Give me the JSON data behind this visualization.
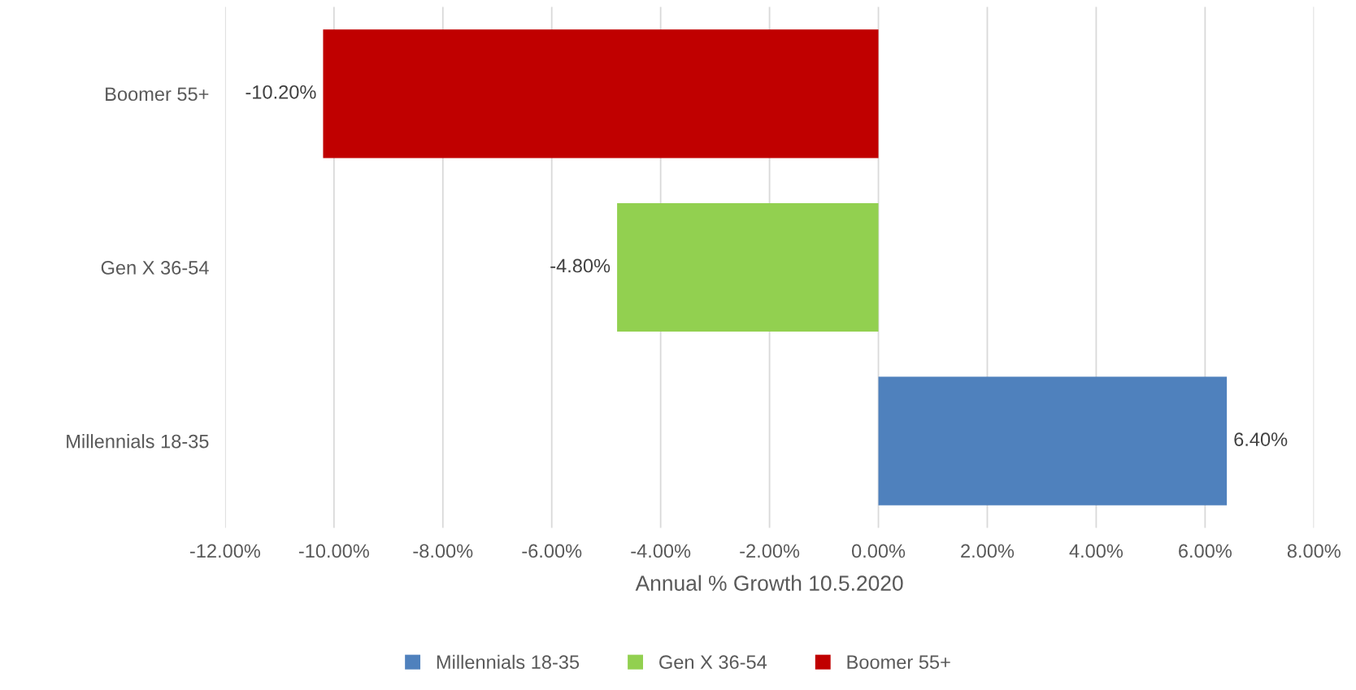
{
  "chart_data": {
    "type": "bar",
    "orientation": "horizontal",
    "categories": [
      "Boomer 55+",
      "Gen X 36-54",
      "Millennials 18-35"
    ],
    "series": [
      {
        "name": "Millennials 18-35",
        "color": "#4f81bd",
        "values": [
          null,
          null,
          6.4
        ],
        "value_labels": [
          null,
          null,
          "6.40%"
        ]
      },
      {
        "name": "Gen X 36-54",
        "color": "#92d050",
        "values": [
          null,
          -4.8,
          null
        ],
        "value_labels": [
          null,
          "-4.80%",
          null
        ]
      },
      {
        "name": "Boomer 55+",
        "color": "#c00000",
        "values": [
          -10.2,
          null,
          null
        ],
        "value_labels": [
          "-10.20%",
          null,
          null
        ]
      }
    ],
    "xlabel": "Annual % Growth 10.5.2020",
    "xlim": [
      -12,
      8
    ],
    "xticks": [
      {
        "value": -12,
        "label": "-12.00%"
      },
      {
        "value": -10,
        "label": "-10.00%"
      },
      {
        "value": -8,
        "label": "-8.00%"
      },
      {
        "value": -6,
        "label": "-6.00%"
      },
      {
        "value": -4,
        "label": "-4.00%"
      },
      {
        "value": -2,
        "label": "-2.00%"
      },
      {
        "value": 0,
        "label": "0.00%"
      },
      {
        "value": 2,
        "label": "2.00%"
      },
      {
        "value": 4,
        "label": "4.00%"
      },
      {
        "value": 6,
        "label": "6.00%"
      },
      {
        "value": 8,
        "label": "8.00%"
      }
    ],
    "grid": "x",
    "legend": "bottom"
  }
}
